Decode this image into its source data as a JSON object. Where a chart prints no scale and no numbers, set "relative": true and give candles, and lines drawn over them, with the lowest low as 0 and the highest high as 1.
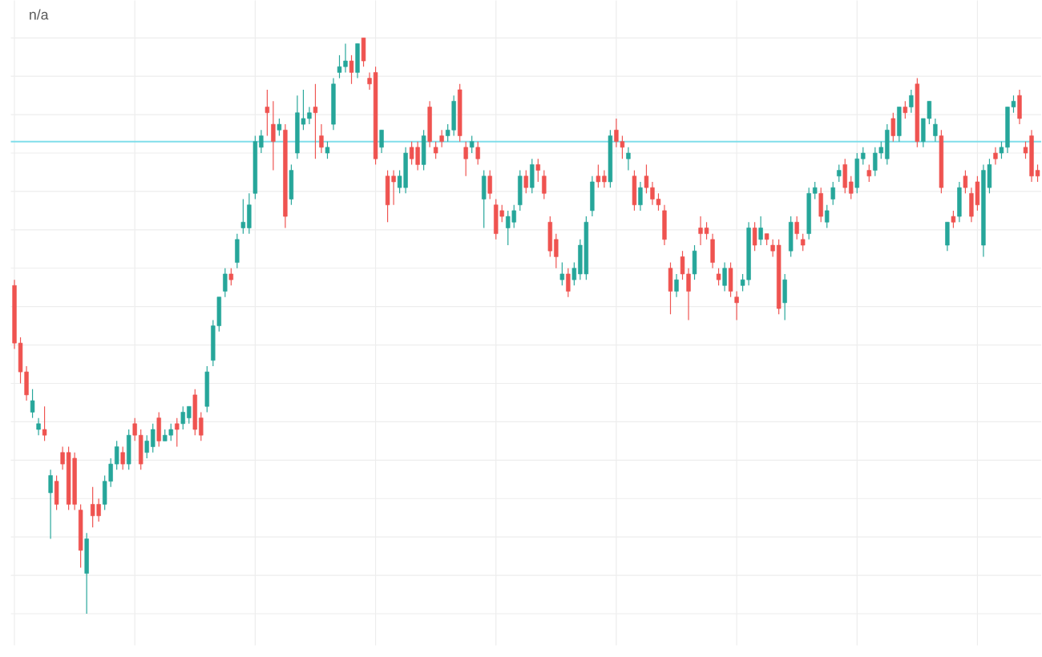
{
  "chart_data": {
    "type": "candlestick",
    "relative": true,
    "grid": true,
    "tick_labels": false,
    "colors": [
      "#ef5350",
      "#ef5350",
      "#ef5350",
      "#26a69a",
      "#26a69a",
      "#ef5350",
      "#26a69a",
      "#ef5350",
      "#ef5350",
      "#ef5350",
      "#ef5350",
      "#ef5350",
      "#26a69a",
      "#ef5350",
      "#ef5350",
      "#26a69a",
      "#26a69a",
      "#26a69a",
      "#ef5350",
      "#26a69a",
      "#ef5350",
      "#ef5350",
      "#26a69a",
      "#26a69a",
      "#ef5350",
      "#26a69a",
      "#26a69a",
      "#ef5350",
      "#26a69a",
      "#26a69a",
      "#ef5350",
      "#ef5350",
      "#26a69a",
      "#26a69a",
      "#26a69a",
      "#26a69a",
      "#ef5350",
      "#26a69a",
      "#26a69a",
      "#26a69a",
      "#26a69a",
      "#26a69a",
      "#ef5350",
      "#ef5350",
      "#26a69a",
      "#ef5350",
      "#26a69a",
      "#26a69a",
      "#26a69a",
      "#26a69a",
      "#ef5350",
      "#ef5350",
      "#26a69a",
      "#26a69a",
      "#26a69a",
      "#26a69a",
      "#ef5350",
      "#26a69a",
      "#ef5350",
      "#ef5350",
      "#ef5350",
      "#26a69a",
      "#ef5350",
      "#ef5350",
      "#26a69a",
      "#26a69a",
      "#ef5350",
      "#ef5350",
      "#26a69a",
      "#ef5350",
      "#ef5350",
      "#ef5350",
      "#26a69a",
      "#26a69a",
      "#ef5350",
      "#ef5350",
      "#26a69a",
      "#ef5350",
      "#26a69a",
      "#ef5350",
      "#ef5350",
      "#ef5350",
      "#26a69a",
      "#26a69a",
      "#26a69a",
      "#ef5350",
      "#26a69a",
      "#ef5350",
      "#ef5350",
      "#ef5350",
      "#ef5350",
      "#26a69a",
      "#ef5350",
      "#26a69a",
      "#26a69a",
      "#26a69a",
      "#26a69a",
      "#ef5350",
      "#ef5350",
      "#26a69a",
      "#ef5350",
      "#ef5350",
      "#26a69a",
      "#ef5350",
      "#26a69a",
      "#ef5350",
      "#ef5350",
      "#ef5350",
      "#ef5350",
      "#ef5350",
      "#26a69a",
      "#ef5350",
      "#ef5350",
      "#26a69a",
      "#ef5350",
      "#ef5350",
      "#ef5350",
      "#ef5350",
      "#26a69a",
      "#ef5350",
      "#ef5350",
      "#26a69a",
      "#26a69a",
      "#ef5350",
      "#26a69a",
      "#ef5350",
      "#ef5350",
      "#ef5350",
      "#26a69a",
      "#26a69a",
      "#ef5350",
      "#ef5350",
      "#26a69a",
      "#26a69a",
      "#ef5350",
      "#26a69a",
      "#26a69a",
      "#26a69a",
      "#ef5350",
      "#ef5350",
      "#26a69a",
      "#26a69a",
      "#ef5350",
      "#26a69a",
      "#26a69a",
      "#26a69a",
      "#ef5350",
      "#26a69a",
      "#ef5350",
      "#26a69a",
      "#ef5350",
      "#26a69a",
      "#26a69a",
      "#26a69a",
      "#ef5350",
      "#26a69a",
      "#ef5350",
      "#26a69a",
      "#ef5350",
      "#ef5350",
      "#ef5350",
      "#26a69a",
      "#26a69a",
      "#ef5350",
      "#26a69a",
      "#26a69a",
      "#26a69a",
      "#ef5350",
      "#ef5350",
      "#ef5350",
      "#ef5350"
    ],
    "annotations": [
      "n/a"
    ],
    "ref_lines": [
      {
        "axis": "y",
        "value": 0.82,
        "color": "#80deea"
      }
    ],
    "categories": [
      null,
      null,
      null,
      null,
      null,
      null,
      null,
      null,
      null,
      null,
      null,
      null,
      null,
      null,
      null,
      null,
      null,
      null,
      null,
      null,
      null,
      null,
      null,
      null,
      null,
      null,
      null,
      null,
      null,
      null,
      null,
      null,
      null,
      null,
      null,
      null,
      null,
      null,
      null,
      null,
      null,
      null,
      null,
      null,
      null,
      null,
      null,
      null,
      null,
      null,
      null,
      null,
      null,
      null,
      null,
      null,
      null,
      null,
      null,
      null,
      null,
      null,
      null,
      null,
      null,
      null,
      null,
      null,
      null,
      null,
      null,
      null,
      null,
      null,
      null,
      null,
      null,
      null,
      null,
      null,
      null,
      null,
      null,
      null,
      null,
      null,
      null,
      null,
      null,
      null,
      null,
      null,
      null,
      null,
      null,
      null,
      null,
      null,
      null,
      null,
      null,
      null,
      null,
      null,
      null,
      null,
      null,
      null,
      null,
      null,
      null,
      null,
      null,
      null,
      null,
      null,
      null,
      null,
      null,
      null,
      null,
      null,
      null,
      null,
      null,
      null,
      null,
      null,
      null,
      null,
      null,
      null,
      null,
      null,
      null,
      null,
      null,
      null,
      null,
      null,
      null,
      null,
      null,
      null,
      null,
      null,
      null,
      null,
      null,
      null,
      null,
      null,
      null,
      null,
      null,
      null,
      null,
      null,
      null,
      null,
      null,
      null,
      null,
      null,
      null,
      null,
      null,
      null,
      null,
      null,
      null
    ],
    "ohlc": [
      [
        0.57,
        0.58,
        0.46,
        0.47
      ],
      [
        0.47,
        0.48,
        0.4,
        0.42
      ],
      [
        0.42,
        0.43,
        0.37,
        0.38
      ],
      [
        0.35,
        0.39,
        0.34,
        0.37
      ],
      [
        0.32,
        0.34,
        0.31,
        0.33
      ],
      [
        0.32,
        0.36,
        0.3,
        0.31
      ],
      [
        0.21,
        0.25,
        0.13,
        0.24
      ],
      [
        0.23,
        0.24,
        0.18,
        0.19
      ],
      [
        0.28,
        0.29,
        0.25,
        0.26
      ],
      [
        0.28,
        0.29,
        0.18,
        0.19
      ],
      [
        0.27,
        0.28,
        0.18,
        0.19
      ],
      [
        0.18,
        0.19,
        0.08,
        0.11
      ],
      [
        0.07,
        0.14,
        0,
        0.13
      ],
      [
        0.19,
        0.22,
        0.15,
        0.17
      ],
      [
        0.19,
        0.2,
        0.16,
        0.17
      ],
      [
        0.19,
        0.24,
        0.18,
        0.23
      ],
      [
        0.23,
        0.27,
        0.22,
        0.26
      ],
      [
        0.26,
        0.3,
        0.25,
        0.29
      ],
      [
        0.28,
        0.29,
        0.25,
        0.26
      ],
      [
        0.26,
        0.32,
        0.25,
        0.31
      ],
      [
        0.33,
        0.34,
        0.3,
        0.31
      ],
      [
        0.31,
        0.32,
        0.25,
        0.26
      ],
      [
        0.28,
        0.31,
        0.27,
        0.3
      ],
      [
        0.29,
        0.33,
        0.28,
        0.32
      ],
      [
        0.34,
        0.35,
        0.29,
        0.3
      ],
      [
        0.3,
        0.32,
        0.3,
        0.31
      ],
      [
        0.31,
        0.33,
        0.3,
        0.32
      ],
      [
        0.33,
        0.34,
        0.29,
        0.32
      ],
      [
        0.33,
        0.36,
        0.32,
        0.35
      ],
      [
        0.34,
        0.36,
        0.33,
        0.36
      ],
      [
        0.38,
        0.39,
        0.31,
        0.32
      ],
      [
        0.34,
        0.35,
        0.3,
        0.31
      ],
      [
        0.36,
        0.43,
        0.35,
        0.42
      ],
      [
        0.44,
        0.51,
        0.43,
        0.5
      ],
      [
        0.5,
        0.55,
        0.49,
        0.55
      ],
      [
        0.56,
        0.6,
        0.55,
        0.59
      ],
      [
        0.59,
        0.6,
        0.57,
        0.58
      ],
      [
        0.61,
        0.66,
        0.6,
        0.65
      ],
      [
        0.67,
        0.72,
        0.66,
        0.68
      ],
      [
        0.67,
        0.73,
        0.66,
        0.71
      ],
      [
        0.73,
        0.83,
        0.72,
        0.82
      ],
      [
        0.81,
        0.84,
        0.8,
        0.83
      ],
      [
        0.88,
        0.91,
        0.83,
        0.87
      ],
      [
        0.85,
        0.89,
        0.77,
        0.82
      ],
      [
        0.84,
        0.86,
        0.83,
        0.85
      ],
      [
        0.84,
        0.85,
        0.67,
        0.69
      ],
      [
        0.72,
        0.78,
        0.71,
        0.77
      ],
      [
        0.8,
        0.9,
        0.79,
        0.87
      ],
      [
        0.85,
        0.91,
        0.84,
        0.86
      ],
      [
        0.86,
        0.88,
        0.85,
        0.87
      ],
      [
        0.88,
        0.92,
        0.79,
        0.87
      ],
      [
        0.83,
        0.85,
        0.8,
        0.81
      ],
      [
        0.8,
        0.82,
        0.79,
        0.81
      ],
      [
        0.85,
        0.93,
        0.84,
        0.92
      ],
      [
        0.94,
        0.97,
        0.93,
        0.95
      ],
      [
        0.95,
        0.99,
        0.94,
        0.96
      ],
      [
        0.96,
        0.97,
        0.92,
        0.94
      ],
      [
        0.94,
        0.99,
        0.93,
        0.99
      ],
      [
        1.0,
        1.0,
        0.95,
        0.96
      ],
      [
        0.93,
        0.94,
        0.91,
        0.92
      ],
      [
        0.94,
        0.95,
        0.78,
        0.79
      ],
      [
        0.81,
        0.84,
        0.8,
        0.84
      ],
      [
        0.76,
        0.77,
        0.68,
        0.71
      ],
      [
        0.76,
        0.77,
        0.71,
        0.75
      ],
      [
        0.74,
        0.77,
        0.73,
        0.76
      ],
      [
        0.74,
        0.81,
        0.73,
        0.8
      ],
      [
        0.81,
        0.82,
        0.78,
        0.79
      ],
      [
        0.81,
        0.82,
        0.77,
        0.78
      ],
      [
        0.78,
        0.84,
        0.77,
        0.83
      ],
      [
        0.88,
        0.89,
        0.81,
        0.82
      ],
      [
        0.81,
        0.82,
        0.79,
        0.8
      ],
      [
        0.83,
        0.84,
        0.81,
        0.82
      ],
      [
        0.83,
        0.85,
        0.82,
        0.84
      ],
      [
        0.84,
        0.9,
        0.83,
        0.89
      ],
      [
        0.91,
        0.92,
        0.82,
        0.83
      ],
      [
        0.81,
        0.82,
        0.76,
        0.79
      ],
      [
        0.81,
        0.83,
        0.8,
        0.82
      ],
      [
        0.81,
        0.82,
        0.78,
        0.79
      ],
      [
        0.72,
        0.77,
        0.67,
        0.76
      ],
      [
        0.76,
        0.77,
        0.72,
        0.73
      ],
      [
        0.71,
        0.72,
        0.65,
        0.66
      ],
      [
        0.7,
        0.71,
        0.68,
        0.69
      ],
      [
        0.67,
        0.7,
        0.64,
        0.69
      ],
      [
        0.68,
        0.71,
        0.67,
        0.7
      ],
      [
        0.71,
        0.77,
        0.7,
        0.76
      ],
      [
        0.76,
        0.77,
        0.73,
        0.74
      ],
      [
        0.74,
        0.79,
        0.73,
        0.78
      ],
      [
        0.78,
        0.79,
        0.75,
        0.77
      ],
      [
        0.76,
        0.77,
        0.72,
        0.73
      ],
      [
        0.68,
        0.69,
        0.62,
        0.63
      ],
      [
        0.65,
        0.66,
        0.6,
        0.62
      ],
      [
        0.58,
        0.61,
        0.57,
        0.59
      ],
      [
        0.59,
        0.6,
        0.55,
        0.56
      ],
      [
        0.58,
        0.61,
        0.57,
        0.6
      ],
      [
        0.59,
        0.65,
        0.58,
        0.64
      ],
      [
        0.59,
        0.69,
        0.58,
        0.68
      ],
      [
        0.7,
        0.76,
        0.69,
        0.75
      ],
      [
        0.76,
        0.78,
        0.74,
        0.75
      ],
      [
        0.76,
        0.77,
        0.74,
        0.75
      ],
      [
        0.75,
        0.84,
        0.74,
        0.83
      ],
      [
        0.84,
        0.86,
        0.81,
        0.82
      ],
      [
        0.82,
        0.83,
        0.79,
        0.81
      ],
      [
        0.79,
        0.81,
        0.77,
        0.8
      ],
      [
        0.76,
        0.77,
        0.7,
        0.71
      ],
      [
        0.71,
        0.75,
        0.7,
        0.74
      ],
      [
        0.76,
        0.78,
        0.73,
        0.74
      ],
      [
        0.74,
        0.75,
        0.71,
        0.72
      ],
      [
        0.72,
        0.73,
        0.7,
        0.71
      ],
      [
        0.7,
        0.71,
        0.64,
        0.65
      ],
      [
        0.6,
        0.61,
        0.52,
        0.56
      ],
      [
        0.56,
        0.59,
        0.55,
        0.58
      ],
      [
        0.62,
        0.63,
        0.58,
        0.59
      ],
      [
        0.59,
        0.6,
        0.51,
        0.56
      ],
      [
        0.59,
        0.64,
        0.58,
        0.63
      ],
      [
        0.67,
        0.69,
        0.64,
        0.66
      ],
      [
        0.67,
        0.68,
        0.65,
        0.66
      ],
      [
        0.65,
        0.66,
        0.6,
        0.61
      ],
      [
        0.59,
        0.6,
        0.57,
        0.58
      ],
      [
        0.57,
        0.61,
        0.56,
        0.6
      ],
      [
        0.6,
        0.61,
        0.55,
        0.56
      ],
      [
        0.55,
        0.56,
        0.51,
        0.54
      ],
      [
        0.57,
        0.59,
        0.56,
        0.58
      ],
      [
        0.58,
        0.68,
        0.57,
        0.67
      ],
      [
        0.67,
        0.68,
        0.63,
        0.64
      ],
      [
        0.65,
        0.69,
        0.64,
        0.67
      ],
      [
        0.66,
        0.66,
        0.64,
        0.65
      ],
      [
        0.64,
        0.65,
        0.62,
        0.63
      ],
      [
        0.64,
        0.65,
        0.52,
        0.53
      ],
      [
        0.54,
        0.59,
        0.51,
        0.58
      ],
      [
        0.63,
        0.69,
        0.62,
        0.68
      ],
      [
        0.68,
        0.69,
        0.65,
        0.66
      ],
      [
        0.65,
        0.66,
        0.63,
        0.64
      ],
      [
        0.66,
        0.74,
        0.65,
        0.73
      ],
      [
        0.73,
        0.75,
        0.72,
        0.74
      ],
      [
        0.73,
        0.74,
        0.68,
        0.69
      ],
      [
        0.68,
        0.71,
        0.67,
        0.7
      ],
      [
        0.72,
        0.75,
        0.71,
        0.74
      ],
      [
        0.76,
        0.78,
        0.75,
        0.77
      ],
      [
        0.78,
        0.79,
        0.73,
        0.74
      ],
      [
        0.75,
        0.76,
        0.72,
        0.73
      ],
      [
        0.74,
        0.8,
        0.73,
        0.79
      ],
      [
        0.79,
        0.81,
        0.78,
        0.8
      ],
      [
        0.77,
        0.78,
        0.75,
        0.76
      ],
      [
        0.77,
        0.81,
        0.76,
        0.8
      ],
      [
        0.8,
        0.82,
        0.79,
        0.81
      ],
      [
        0.79,
        0.85,
        0.78,
        0.84
      ],
      [
        0.86,
        0.87,
        0.82,
        0.83
      ],
      [
        0.83,
        0.88,
        0.82,
        0.88
      ],
      [
        0.88,
        0.89,
        0.86,
        0.87
      ],
      [
        0.88,
        0.91,
        0.87,
        0.9
      ],
      [
        0.92,
        0.93,
        0.81,
        0.82
      ],
      [
        0.82,
        0.86,
        0.81,
        0.86
      ],
      [
        0.86,
        0.89,
        0.85,
        0.89
      ],
      [
        0.83,
        0.86,
        0.82,
        0.85
      ],
      [
        0.83,
        0.84,
        0.73,
        0.74
      ],
      [
        0.64,
        0.68,
        0.63,
        0.68
      ],
      [
        0.69,
        0.7,
        0.67,
        0.68
      ],
      [
        0.69,
        0.75,
        0.68,
        0.74
      ],
      [
        0.76,
        0.77,
        0.73,
        0.74
      ],
      [
        0.73,
        0.74,
        0.68,
        0.69
      ],
      [
        0.75,
        0.76,
        0.7,
        0.71
      ],
      [
        0.64,
        0.78,
        0.62,
        0.77
      ],
      [
        0.74,
        0.79,
        0.73,
        0.78
      ],
      [
        0.8,
        0.81,
        0.78,
        0.79
      ],
      [
        0.8,
        0.82,
        0.79,
        0.81
      ],
      [
        0.81,
        0.88,
        0.8,
        0.88
      ],
      [
        0.88,
        0.9,
        0.87,
        0.89
      ],
      [
        0.9,
        0.91,
        0.85,
        0.86
      ],
      [
        0.81,
        0.82,
        0.79,
        0.8
      ],
      [
        0.83,
        0.84,
        0.75,
        0.76
      ],
      [
        0.77,
        0.78,
        0.75,
        0.76
      ]
    ]
  }
}
